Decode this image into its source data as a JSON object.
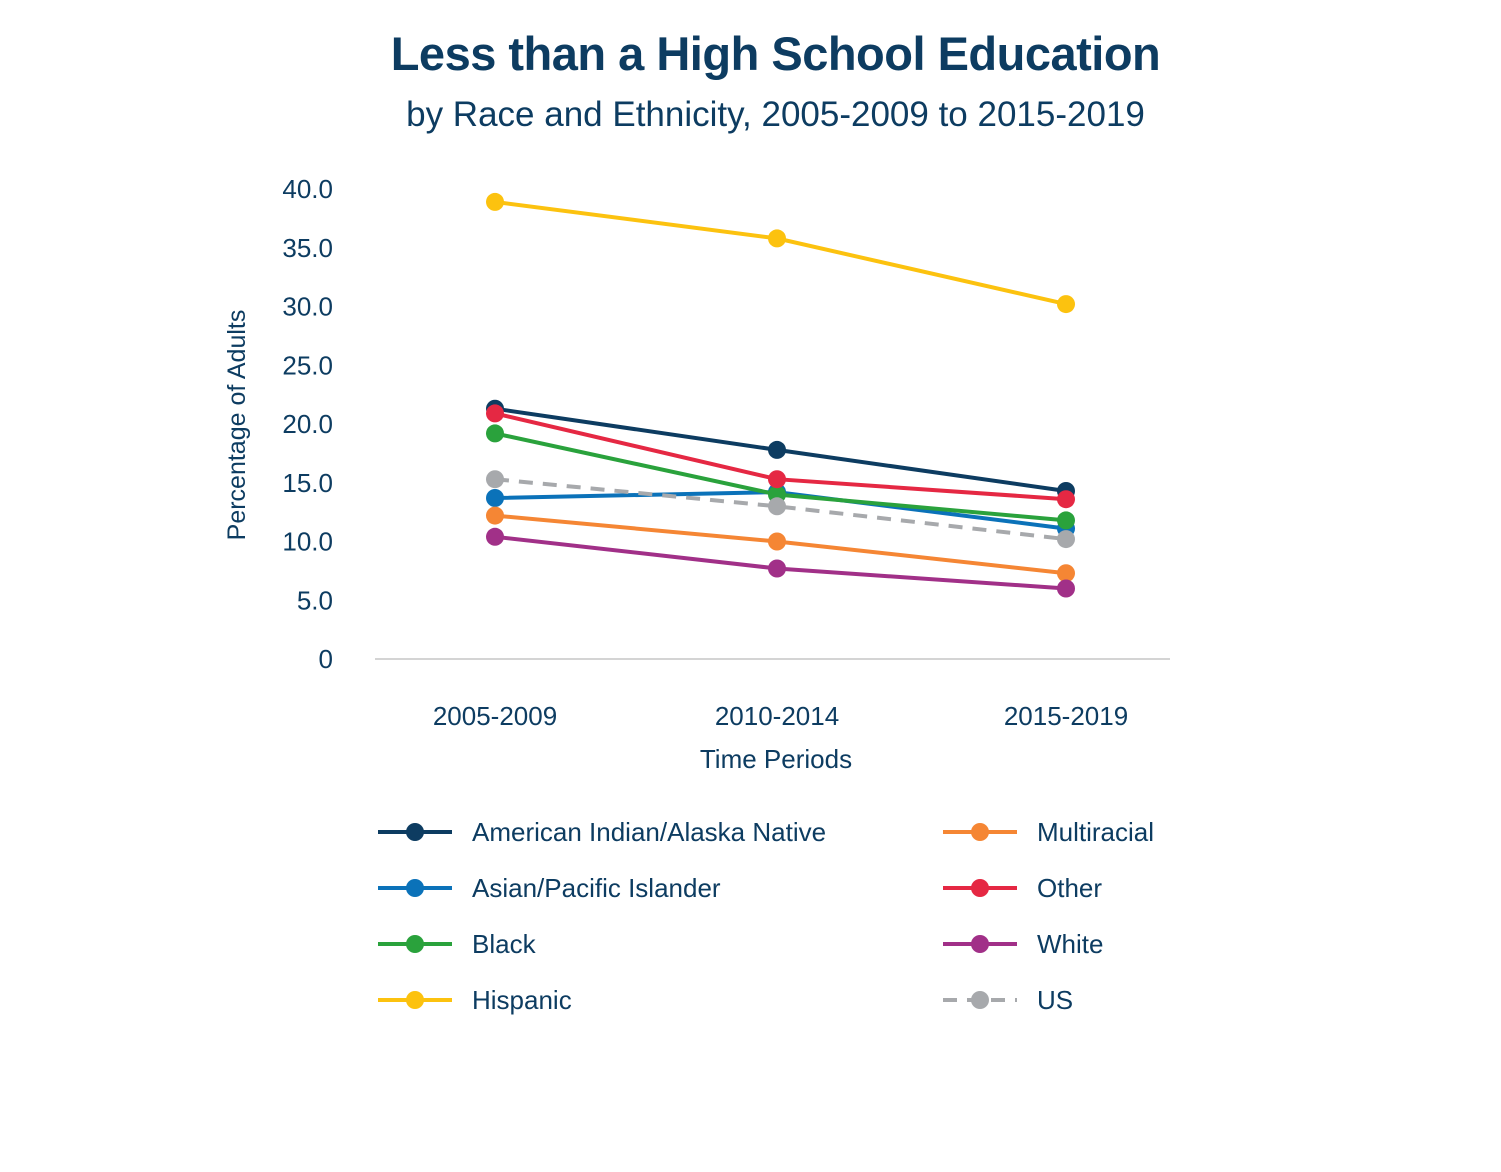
{
  "chart_data": {
    "type": "line",
    "title": "Less than a High School Education",
    "subtitle": "by Race and Ethnicity, 2005-2009 to 2015-2019",
    "xlabel": "Time Periods",
    "ylabel": "Percentage of Adults",
    "categories": [
      "2005-2009",
      "2010-2014",
      "2015-2019"
    ],
    "ylim": [
      0,
      40
    ],
    "yticks": [
      "0",
      "5.0",
      "10.0",
      "15.0",
      "20.0",
      "25.0",
      "30.0",
      "35.0",
      "40.0"
    ],
    "grid": false,
    "legend_position": "bottom",
    "series": [
      {
        "name": "American Indian/Alaska Native",
        "color": "#0d3c61",
        "dashed": false,
        "values": [
          21.3,
          17.8,
          14.3
        ]
      },
      {
        "name": "Asian/Pacific Islander",
        "color": "#0b72b9",
        "dashed": false,
        "values": [
          13.7,
          14.2,
          11.1
        ]
      },
      {
        "name": "Black",
        "color": "#2aa23c",
        "dashed": false,
        "values": [
          19.2,
          14.0,
          11.8
        ]
      },
      {
        "name": "Hispanic",
        "color": "#fcc20f",
        "dashed": false,
        "values": [
          38.9,
          35.8,
          30.2
        ]
      },
      {
        "name": "Multiracial",
        "color": "#f58634",
        "dashed": false,
        "values": [
          12.2,
          10.0,
          7.3
        ]
      },
      {
        "name": "Other",
        "color": "#e52843",
        "dashed": false,
        "values": [
          20.9,
          15.3,
          13.6
        ]
      },
      {
        "name": "White",
        "color": "#a13088",
        "dashed": false,
        "values": [
          10.4,
          7.7,
          6.0
        ]
      },
      {
        "name": "US",
        "color": "#a7a9ac",
        "dashed": true,
        "values": [
          15.3,
          13.0,
          10.2
        ]
      }
    ]
  }
}
